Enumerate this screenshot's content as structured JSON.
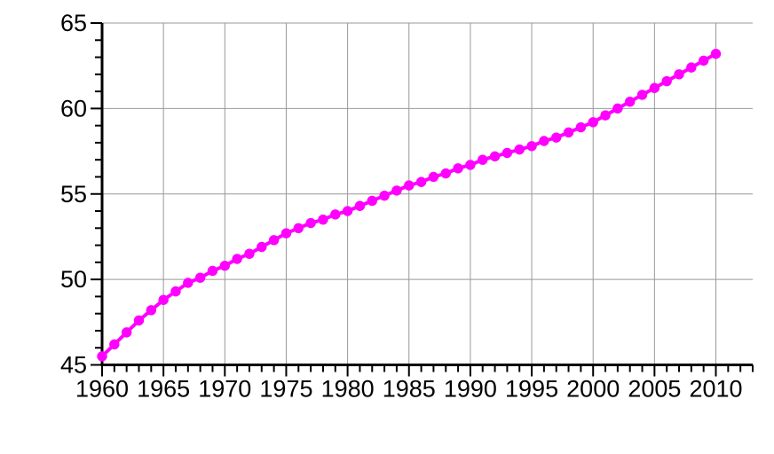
{
  "chart_data": {
    "type": "line",
    "title": "",
    "xlabel": "",
    "ylabel": "",
    "legend": false,
    "grid": true,
    "background": "#ffffff",
    "grid_color": "#999999",
    "axis_color": "#000000",
    "tick_label_color": "#000000",
    "xlim": [
      1960,
      2013
    ],
    "ylim": [
      45,
      65
    ],
    "x_major_ticks": [
      1960,
      1965,
      1970,
      1975,
      1980,
      1985,
      1990,
      1995,
      2000,
      2005,
      2010
    ],
    "x_tick_labels": [
      "1960",
      "1965",
      "1970",
      "1975",
      "1980",
      "1985",
      "1990",
      "1995",
      "2000",
      "2005",
      "2010"
    ],
    "y_major_ticks": [
      45,
      50,
      55,
      60,
      65
    ],
    "y_tick_labels": [
      "45",
      "50",
      "55",
      "60",
      "65"
    ],
    "x_minor_step": 1,
    "y_minor_step": 1,
    "x": [
      1960,
      1961,
      1962,
      1963,
      1964,
      1965,
      1966,
      1967,
      1968,
      1969,
      1970,
      1971,
      1972,
      1973,
      1974,
      1975,
      1976,
      1977,
      1978,
      1979,
      1980,
      1981,
      1982,
      1983,
      1984,
      1985,
      1986,
      1987,
      1988,
      1989,
      1990,
      1991,
      1992,
      1993,
      1994,
      1995,
      1996,
      1997,
      1998,
      1999,
      2000,
      2001,
      2002,
      2003,
      2004,
      2005,
      2006,
      2007,
      2008,
      2009,
      2010
    ],
    "series": [
      {
        "name": "series-1",
        "color": "#ff00ff",
        "marker": "circle",
        "values": [
          45.5,
          46.2,
          46.9,
          47.6,
          48.2,
          48.8,
          49.3,
          49.8,
          50.1,
          50.5,
          50.8,
          51.2,
          51.5,
          51.9,
          52.3,
          52.7,
          53.0,
          53.3,
          53.5,
          53.8,
          54.0,
          54.3,
          54.6,
          54.9,
          55.2,
          55.5,
          55.7,
          56.0,
          56.2,
          56.5,
          56.7,
          57.0,
          57.2,
          57.4,
          57.6,
          57.8,
          58.1,
          58.3,
          58.6,
          58.9,
          59.2,
          59.6,
          60.0,
          60.4,
          60.8,
          61.2,
          61.6,
          62.0,
          62.4,
          62.8,
          63.2
        ]
      }
    ]
  }
}
